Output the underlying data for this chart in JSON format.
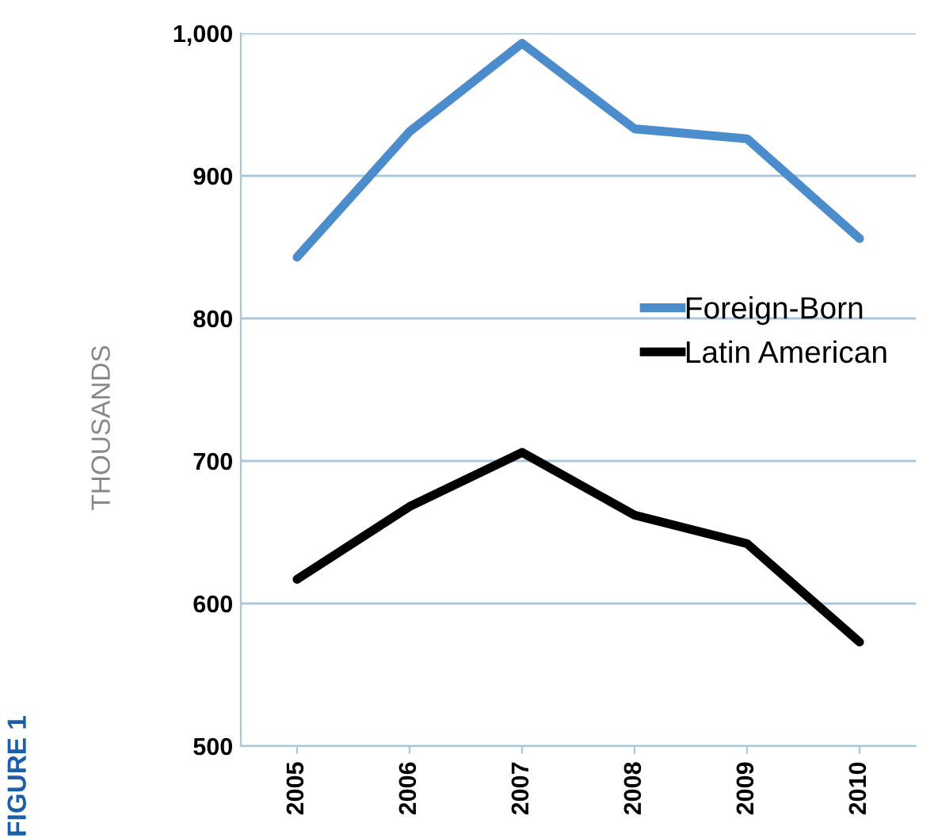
{
  "chart_data": {
    "type": "line",
    "ylabel": "THOUSANDS",
    "annotations": [
      "FIGURE 1"
    ],
    "categories": [
      "2005",
      "2006",
      "2007",
      "2008",
      "2009",
      "2010"
    ],
    "series": [
      {
        "name": "Foreign-Born",
        "color": "#4a8ccc",
        "values": [
          843,
          931,
          993,
          933,
          926,
          856
        ]
      },
      {
        "name": "Latin American",
        "color": "#000000",
        "values": [
          617,
          668,
          706,
          662,
          642,
          573
        ]
      }
    ],
    "ylim": [
      500,
      1000
    ],
    "yticks": [
      500,
      600,
      700,
      800,
      900,
      {
        "value": 1000,
        "label": "1,000"
      }
    ],
    "grid": "y",
    "legend": "right",
    "marker": "none",
    "line_style": "solid"
  }
}
